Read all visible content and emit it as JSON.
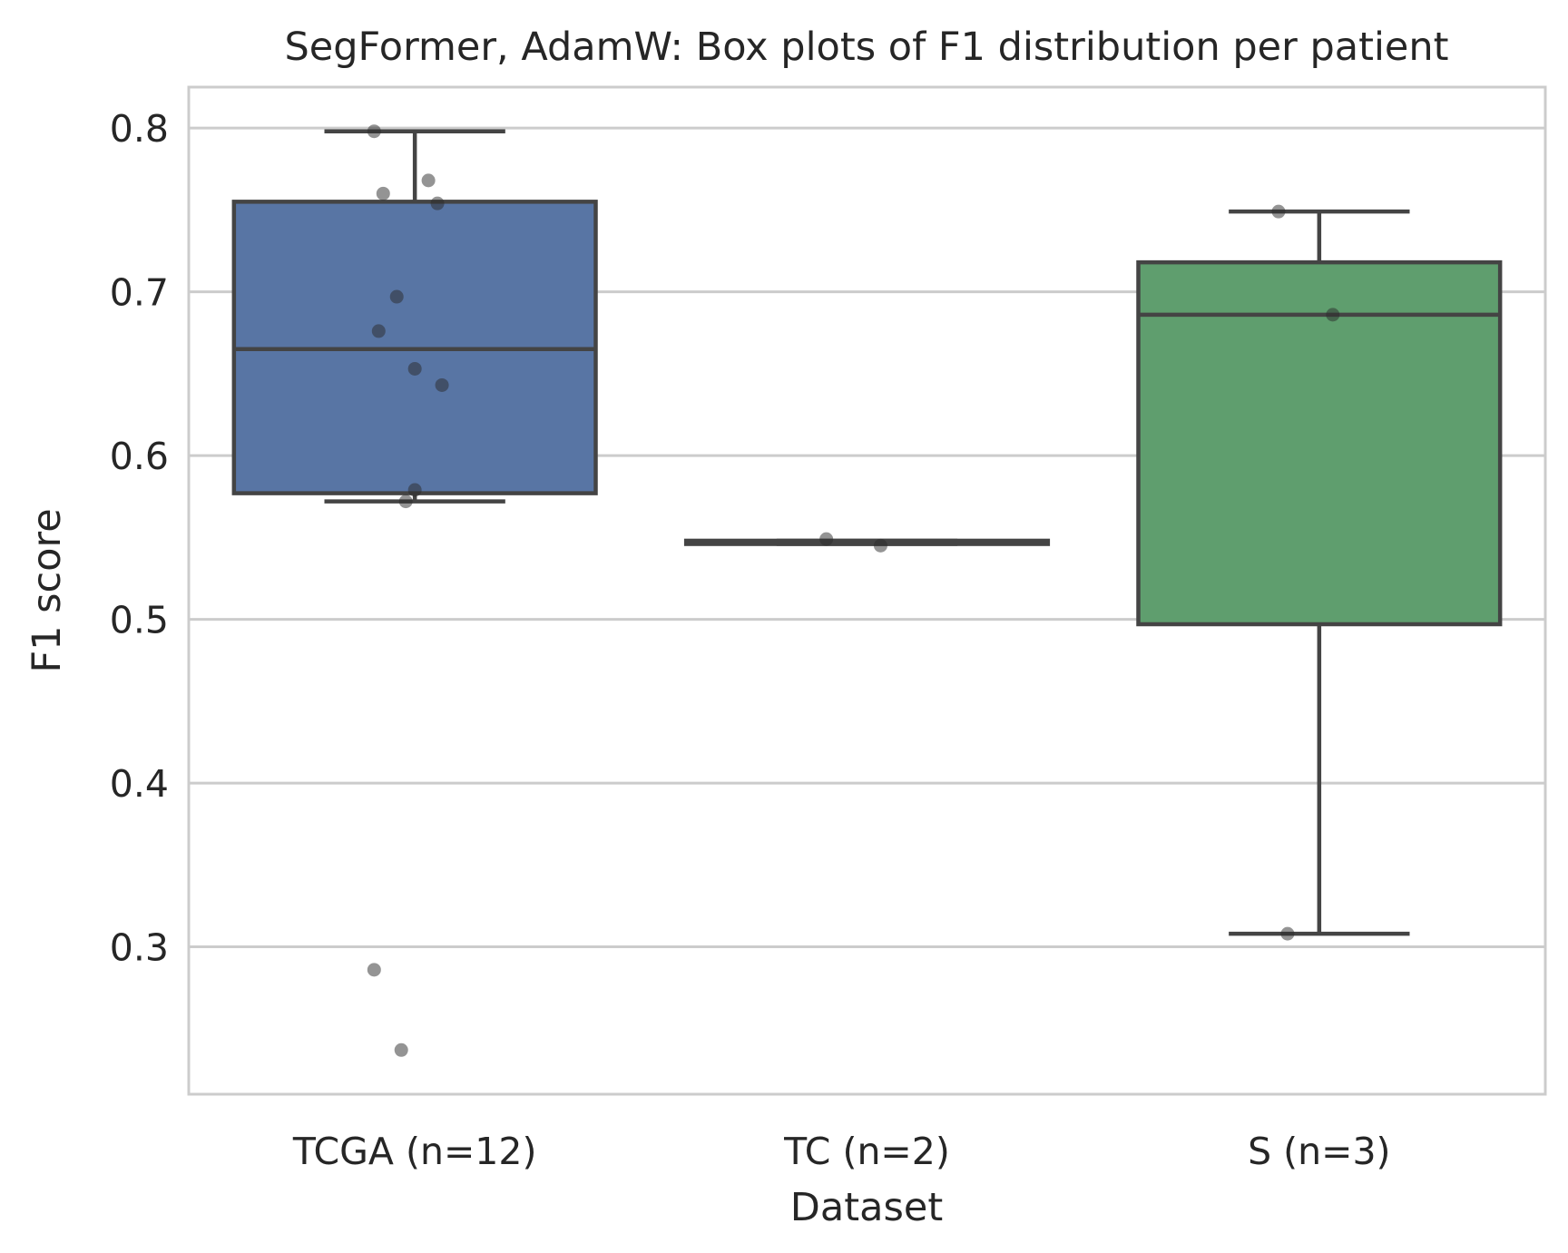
{
  "chart_data": {
    "type": "box",
    "title": "SegFormer, AdamW: Box plots of F1 distribution per patient",
    "xlabel": "Dataset",
    "ylabel": "F1 score",
    "ylim": [
      0.21,
      0.825
    ],
    "yticks": [
      0.3,
      0.4,
      0.5,
      0.6,
      0.7,
      0.8
    ],
    "ytick_labels": [
      "0.3",
      "0.4",
      "0.5",
      "0.6",
      "0.7",
      "0.8"
    ],
    "grid": "horizontal",
    "categories": [
      "TCGA (n=12)",
      "TC (n=2)",
      "S (n=3)"
    ],
    "boxes": [
      {
        "name": "TCGA (n=12)",
        "color": "#5875a4",
        "q1": 0.577,
        "median": 0.665,
        "q3": 0.755,
        "whisker_low": 0.572,
        "whisker_high": 0.798,
        "points": [
          0.798,
          0.768,
          0.76,
          0.754,
          0.697,
          0.676,
          0.653,
          0.643,
          0.579,
          0.572,
          0.286,
          0.237
        ]
      },
      {
        "name": "TC (n=2)",
        "color": "#4c72b0",
        "q1": 0.546,
        "median": 0.547,
        "q3": 0.548,
        "whisker_low": 0.546,
        "whisker_high": 0.548,
        "points": [
          0.549,
          0.545
        ]
      },
      {
        "name": "S (n=3)",
        "color": "#5f9e6e",
        "q1": 0.497,
        "median": 0.686,
        "q3": 0.718,
        "whisker_low": 0.308,
        "whisker_high": 0.749,
        "points": [
          0.749,
          0.686,
          0.308
        ]
      }
    ]
  }
}
